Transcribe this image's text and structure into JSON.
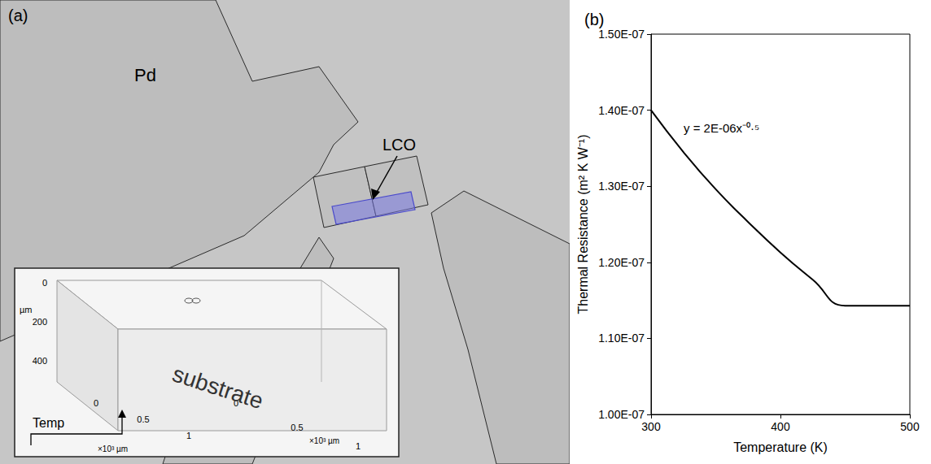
{
  "panels": [
    "(a)",
    "(b)"
  ],
  "diagram": {
    "labels": {
      "pd": "Pd",
      "lco": "LCO"
    },
    "inset": {
      "body": "substrate",
      "temp": "Temp",
      "axis_left": {
        "ticks": [
          "0",
          "200",
          "400"
        ],
        "unit": "µm"
      },
      "axis_bottom": {
        "ticks": [
          "0",
          "0.5",
          "1"
        ],
        "unit": "×10³ µm"
      },
      "axis_right": {
        "ticks": [
          "0",
          "0.5",
          "1"
        ],
        "unit": "×10³ µm"
      }
    }
  },
  "chart_data": {
    "type": "line",
    "x_label": "Temperature (K)",
    "y_label": "Thermal Resistance (m² K W⁻¹)",
    "annotation": "y = 2E-06x⁻⁰·⁵",
    "x": [
      300,
      325,
      350,
      375,
      400,
      425,
      450,
      475,
      500
    ],
    "values": [
      1.4e-07,
      1.345e-07,
      1.296e-07,
      1.253e-07,
      1.213e-07,
      1.177e-07,
      1.143e-07,
      1.143e-07,
      1.143e-07
    ],
    "color": "#000000",
    "xlim": [
      300,
      500
    ],
    "xticks": [
      300,
      400,
      500
    ],
    "ylim": [
      1e-07,
      1.5e-07
    ],
    "yticks": [
      {
        "value": 1e-07,
        "label": "1.00E-07"
      },
      {
        "value": 1.1e-07,
        "label": "1.10E-07"
      },
      {
        "value": 1.2e-07,
        "label": "1.20E-07"
      },
      {
        "value": 1.3e-07,
        "label": "1.30E-07"
      },
      {
        "value": 1.4e-07,
        "label": "1.40E-07"
      },
      {
        "value": 1.5e-07,
        "label": "1.50E-07"
      }
    ],
    "grid": false
  }
}
